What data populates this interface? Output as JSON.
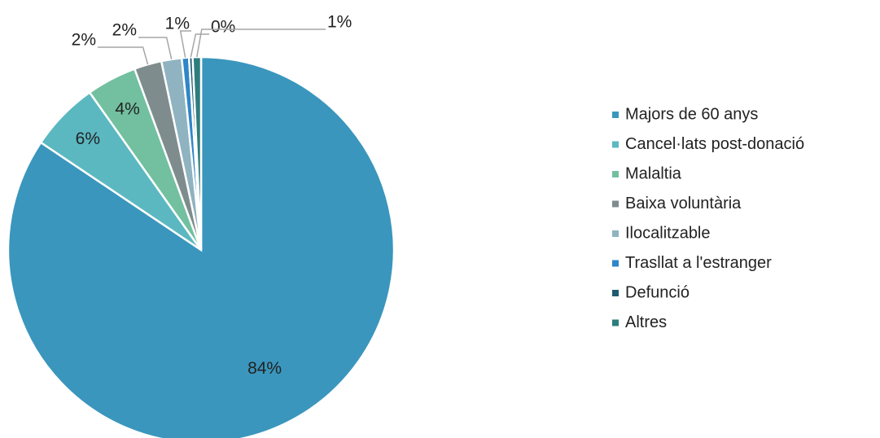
{
  "chart_data": {
    "type": "pie",
    "categories": [
      "Majors de 60 anys",
      "Cancel·lats post-donació",
      "Malaltia",
      "Baixa voluntària",
      "Ilocalitzable",
      "Trasllat a l'estranger",
      "Defunció",
      "Altres"
    ],
    "values": [
      84.4,
      5.8,
      4.2,
      2.3,
      1.7,
      0.6,
      0.3,
      0.7
    ],
    "value_labels": [
      "84%",
      "6%",
      "4%",
      "2%",
      "2%",
      "1%",
      "0%",
      "1%"
    ],
    "colors": [
      "#3a96bd",
      "#5bb8c1",
      "#72c0a0",
      "#7f8c8d",
      "#8fb3c0",
      "#2f86c8",
      "#1f5b70",
      "#2d7d7d"
    ],
    "legend": "right"
  }
}
